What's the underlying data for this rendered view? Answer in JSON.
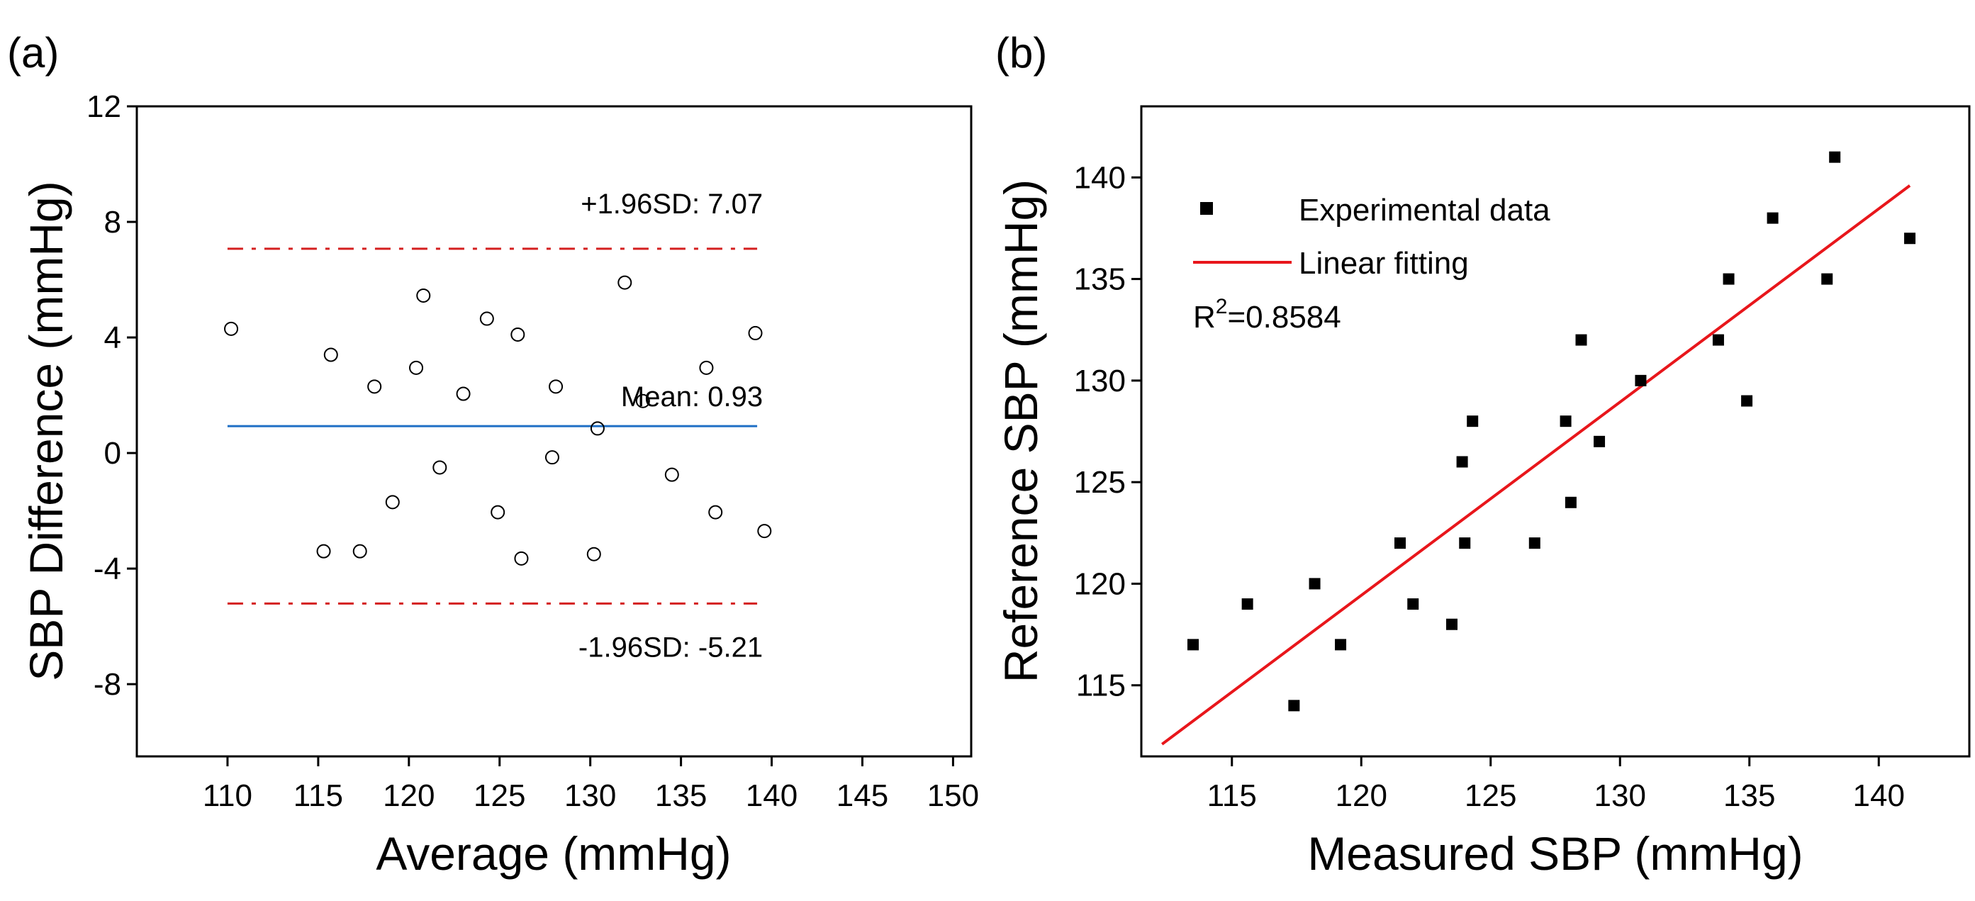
{
  "chart_data": [
    {
      "panel": "(a)",
      "type": "scatter",
      "subtype": "bland-altman",
      "xlabel": "Average (mmHg)",
      "ylabel": "SBP Difference (mmHg)",
      "xlim": [
        105,
        151
      ],
      "ylim": [
        -10.5,
        12
      ],
      "xticks": [
        110,
        115,
        120,
        125,
        130,
        135,
        140,
        145,
        150
      ],
      "yticks": [
        -8,
        -4,
        0,
        4,
        8,
        12
      ],
      "points": [
        [
          110.2,
          4.3
        ],
        [
          115.3,
          -3.4
        ],
        [
          115.7,
          3.4
        ],
        [
          117.3,
          -3.4
        ],
        [
          118.1,
          2.3
        ],
        [
          119.1,
          -1.7
        ],
        [
          120.4,
          2.95
        ],
        [
          120.8,
          5.45
        ],
        [
          121.7,
          -0.5
        ],
        [
          123.0,
          2.05
        ],
        [
          124.3,
          4.65
        ],
        [
          124.9,
          -2.05
        ],
        [
          126.0,
          4.1
        ],
        [
          126.2,
          -3.65
        ],
        [
          127.9,
          -0.15
        ],
        [
          128.1,
          2.3
        ],
        [
          130.2,
          -3.5
        ],
        [
          130.4,
          0.85
        ],
        [
          131.9,
          5.9
        ],
        [
          132.9,
          1.8
        ],
        [
          134.5,
          -0.75
        ],
        [
          136.4,
          2.95
        ],
        [
          136.9,
          -2.05
        ],
        [
          139.1,
          4.15
        ],
        [
          139.6,
          -2.7
        ]
      ],
      "lines": {
        "mean": {
          "value": 0.93,
          "x_range": [
            110,
            139.2
          ],
          "color": "#1f6fc5",
          "label": "Mean: 0.93"
        },
        "upper": {
          "value": 7.07,
          "x_range": [
            110,
            139.2
          ],
          "color": "#d42020",
          "label": "+1.96SD: 7.07"
        },
        "lower": {
          "value": -5.21,
          "x_range": [
            110,
            139.2
          ],
          "color": "#d42020",
          "label": "-1.96SD: -5.21"
        }
      }
    },
    {
      "panel": "(b)",
      "type": "scatter",
      "xlabel": "Measured SBP (mmHg)",
      "ylabel": "Reference SBP (mmHg)",
      "xlim": [
        111.5,
        143.5
      ],
      "ylim": [
        111.5,
        143.5
      ],
      "xticks": [
        115,
        120,
        125,
        130,
        135,
        140
      ],
      "yticks": [
        115,
        120,
        125,
        130,
        135,
        140
      ],
      "series": [
        {
          "name": "Experimental data",
          "marker": "square",
          "color": "#000000",
          "points": [
            [
              113.5,
              117
            ],
            [
              115.6,
              119
            ],
            [
              117.4,
              114
            ],
            [
              118.2,
              120
            ],
            [
              119.2,
              117
            ],
            [
              121.5,
              122
            ],
            [
              122.0,
              119
            ],
            [
              123.5,
              118
            ],
            [
              123.9,
              126
            ],
            [
              124.0,
              122
            ],
            [
              124.3,
              128
            ],
            [
              126.7,
              122
            ],
            [
              127.9,
              128
            ],
            [
              128.1,
              124
            ],
            [
              128.5,
              132
            ],
            [
              129.2,
              127
            ],
            [
              130.8,
              130
            ],
            [
              133.8,
              132
            ],
            [
              134.2,
              135
            ],
            [
              134.9,
              129
            ],
            [
              135.9,
              138
            ],
            [
              138.0,
              135
            ],
            [
              138.3,
              141
            ],
            [
              141.2,
              137
            ]
          ]
        },
        {
          "name": "Linear fitting",
          "type": "line",
          "color": "#e8161b",
          "x": [
            112.3,
            141.2
          ],
          "y": [
            112.1,
            139.6
          ]
        }
      ],
      "legend": {
        "placement": "top-left",
        "entries": [
          "Experimental data",
          "Linear fitting"
        ],
        "r2_prefix": "R",
        "r2_sup": "2",
        "r2_value": "=0.8584"
      }
    }
  ]
}
